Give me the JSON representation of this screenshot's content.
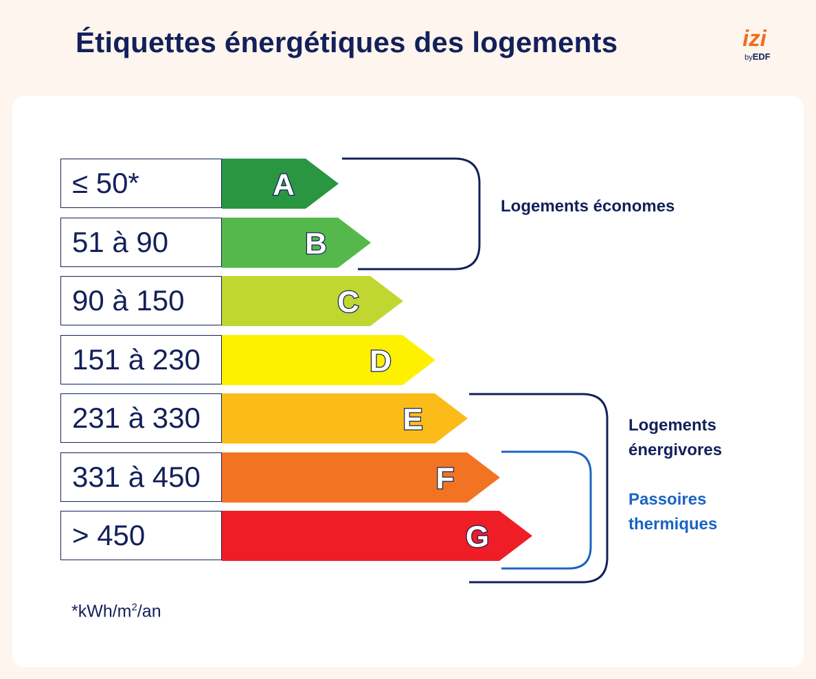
{
  "title": "Étiquettes énergétiques des logements",
  "logo": {
    "brand": "izi",
    "by": "by",
    "edf": "EDF"
  },
  "classes": [
    {
      "letter": "A",
      "range": "≤ 50*",
      "color": "#2a9641"
    },
    {
      "letter": "B",
      "range": "51 à 90",
      "color": "#54b94a"
    },
    {
      "letter": "C",
      "range": "90 à 150",
      "color": "#c1d731"
    },
    {
      "letter": "D",
      "range": "151 à 230",
      "color": "#fdf100"
    },
    {
      "letter": "E",
      "range": "231 à 330",
      "color": "#fbbc19"
    },
    {
      "letter": "F",
      "range": "331 à 450",
      "color": "#f27423"
    },
    {
      "letter": "G",
      "range": "> 450",
      "color": "#ee1d26"
    }
  ],
  "groups": {
    "economes": {
      "label": "Logements économes",
      "color": "#13205a"
    },
    "energivores": {
      "line1": "Logements",
      "line2": "énergivores",
      "color": "#13205a"
    },
    "passoires": {
      "line1": "Passoires",
      "line2": "thermiques",
      "color": "#1b63c3"
    }
  },
  "footnote": {
    "unit": "*kWh/m",
    "sup": "2",
    "suffix": "/an"
  }
}
